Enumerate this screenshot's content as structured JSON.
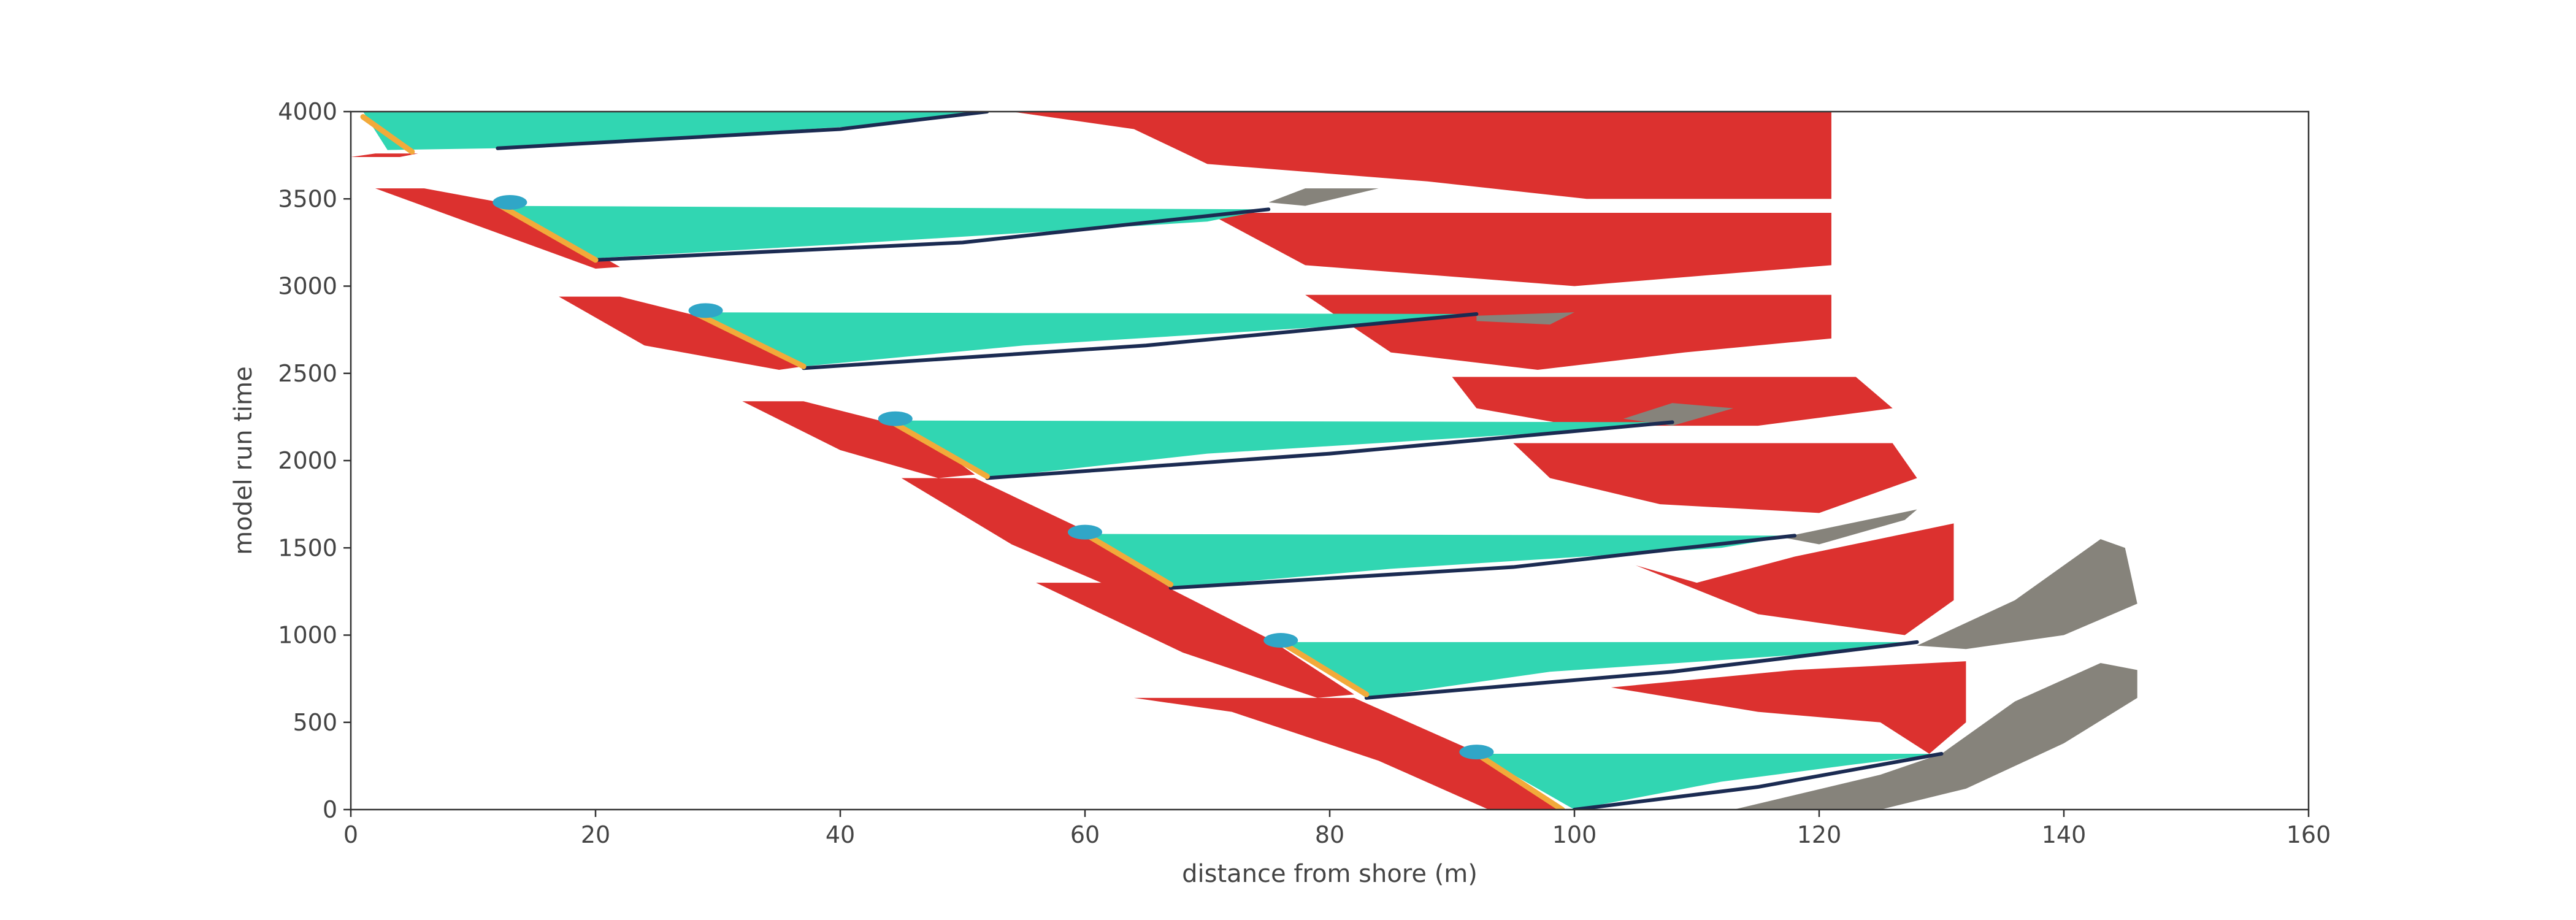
{
  "chart_data": {
    "type": "area",
    "title": "",
    "xlabel": "distance from shore (m)",
    "ylabel": "model run time",
    "xlim": [
      0,
      160
    ],
    "ylim": [
      0,
      4000
    ],
    "xticks": [
      0,
      20,
      40,
      60,
      80,
      100,
      120,
      140,
      160
    ],
    "yticks": [
      0,
      500,
      1000,
      1500,
      2000,
      2500,
      3000,
      3500,
      4000
    ],
    "grid": false,
    "legend": "none",
    "colors": {
      "red": "#dc312f",
      "teal": "#31d6b2",
      "gray": "#86837b",
      "navy": "#1b2b52",
      "orange": "#f2aa3a",
      "blue": "#30a6c7"
    },
    "regions": [
      {
        "color": "red",
        "points": [
          [
            0,
            3740
          ],
          [
            2,
            3760
          ],
          [
            5.5,
            3760
          ],
          [
            4,
            3740
          ]
        ]
      },
      {
        "color": "red",
        "points": [
          [
            2,
            3560
          ],
          [
            6,
            3560
          ],
          [
            13,
            3470
          ],
          [
            22,
            3110
          ],
          [
            20,
            3100
          ],
          [
            11,
            3330
          ]
        ]
      },
      {
        "color": "red",
        "points": [
          [
            17,
            2940
          ],
          [
            22,
            2940
          ],
          [
            30,
            2800
          ],
          [
            37,
            2540
          ],
          [
            35,
            2520
          ],
          [
            24,
            2660
          ]
        ]
      },
      {
        "color": "red",
        "points": [
          [
            32,
            2340
          ],
          [
            37,
            2340
          ],
          [
            46,
            2180
          ],
          [
            51,
            1920
          ],
          [
            48,
            1900
          ],
          [
            40,
            2060
          ]
        ]
      },
      {
        "color": "red",
        "points": [
          [
            45,
            1900
          ],
          [
            51,
            1900
          ],
          [
            60,
            1600
          ],
          [
            67,
            1270
          ],
          [
            63,
            1250
          ],
          [
            54,
            1520
          ]
        ]
      },
      {
        "color": "red",
        "points": [
          [
            56,
            1300
          ],
          [
            66,
            1300
          ],
          [
            75,
            980
          ],
          [
            82,
            660
          ],
          [
            79,
            640
          ],
          [
            68,
            900
          ]
        ]
      },
      {
        "color": "red",
        "points": [
          [
            64,
            640
          ],
          [
            82,
            640
          ],
          [
            91,
            360
          ],
          [
            99,
            0
          ],
          [
            93,
            0
          ],
          [
            84,
            280
          ],
          [
            72,
            560
          ]
        ]
      },
      {
        "color": "red",
        "points": [
          [
            54,
            4000
          ],
          [
            121,
            4000
          ],
          [
            121,
            3500
          ],
          [
            101,
            3500
          ],
          [
            88,
            3600
          ],
          [
            70,
            3700
          ],
          [
            64,
            3900
          ]
        ]
      },
      {
        "color": "red",
        "points": [
          [
            70,
            3420
          ],
          [
            121,
            3420
          ],
          [
            121,
            3120
          ],
          [
            100,
            3000
          ],
          [
            78,
            3120
          ]
        ]
      },
      {
        "color": "red",
        "points": [
          [
            78,
            2950
          ],
          [
            121,
            2950
          ],
          [
            121,
            2700
          ],
          [
            109,
            2620
          ],
          [
            97,
            2520
          ],
          [
            85,
            2620
          ]
        ]
      },
      {
        "color": "red",
        "points": [
          [
            90,
            2480
          ],
          [
            123,
            2480
          ],
          [
            126,
            2300
          ],
          [
            115,
            2200
          ],
          [
            100,
            2200
          ],
          [
            92,
            2300
          ]
        ]
      },
      {
        "color": "red",
        "points": [
          [
            95,
            2100
          ],
          [
            126,
            2100
          ],
          [
            128,
            1900
          ],
          [
            120,
            1700
          ],
          [
            107,
            1750
          ],
          [
            98,
            1900
          ]
        ]
      },
      {
        "color": "red",
        "points": [
          [
            105,
            1400
          ],
          [
            110,
            1300
          ],
          [
            118,
            1450
          ],
          [
            131,
            1640
          ],
          [
            131,
            1200
          ],
          [
            127,
            1000
          ],
          [
            115,
            1120
          ]
        ]
      },
      {
        "color": "red",
        "points": [
          [
            103,
            700
          ],
          [
            115,
            560
          ],
          [
            125,
            500
          ],
          [
            129,
            320
          ],
          [
            132,
            500
          ],
          [
            132,
            850
          ],
          [
            118,
            800
          ]
        ]
      },
      {
        "color": "teal",
        "points": [
          [
            1,
            4000
          ],
          [
            52,
            4000
          ],
          [
            42,
            3920
          ],
          [
            12,
            3790
          ],
          [
            3,
            3780
          ]
        ]
      },
      {
        "color": "teal",
        "points": [
          [
            12,
            3460
          ],
          [
            75,
            3440
          ],
          [
            70,
            3370
          ],
          [
            40,
            3240
          ],
          [
            20,
            3160
          ]
        ]
      },
      {
        "color": "teal",
        "points": [
          [
            28,
            2850
          ],
          [
            92,
            2840
          ],
          [
            85,
            2790
          ],
          [
            55,
            2660
          ],
          [
            37,
            2540
          ]
        ]
      },
      {
        "color": "teal",
        "points": [
          [
            44,
            2230
          ],
          [
            108,
            2220
          ],
          [
            100,
            2170
          ],
          [
            70,
            2040
          ],
          [
            52,
            1900
          ]
        ]
      },
      {
        "color": "teal",
        "points": [
          [
            60,
            1580
          ],
          [
            118,
            1570
          ],
          [
            112,
            1500
          ],
          [
            85,
            1380
          ],
          [
            67,
            1270
          ]
        ]
      },
      {
        "color": "teal",
        "points": [
          [
            76,
            960
          ],
          [
            128,
            960
          ],
          [
            121,
            900
          ],
          [
            98,
            790
          ],
          [
            83,
            640
          ]
        ]
      },
      {
        "color": "teal",
        "points": [
          [
            92,
            320
          ],
          [
            130,
            320
          ],
          [
            123,
            260
          ],
          [
            112,
            160
          ],
          [
            100,
            0
          ]
        ]
      },
      {
        "color": "gray",
        "points": [
          [
            75,
            3480
          ],
          [
            78,
            3560
          ],
          [
            84,
            3560
          ],
          [
            78,
            3460
          ]
        ]
      },
      {
        "color": "gray",
        "points": [
          [
            92,
            2830
          ],
          [
            100,
            2850
          ],
          [
            98,
            2780
          ],
          [
            92,
            2800
          ]
        ]
      },
      {
        "color": "gray",
        "points": [
          [
            104,
            2240
          ],
          [
            108,
            2330
          ],
          [
            113,
            2300
          ],
          [
            108,
            2200
          ]
        ]
      },
      {
        "color": "gray",
        "points": [
          [
            117,
            1560
          ],
          [
            128,
            1720
          ],
          [
            127,
            1660
          ],
          [
            120,
            1520
          ]
        ]
      },
      {
        "color": "gray",
        "points": [
          [
            128,
            940
          ],
          [
            136,
            1200
          ],
          [
            143,
            1550
          ],
          [
            145,
            1500
          ],
          [
            146,
            1180
          ],
          [
            140,
            1000
          ],
          [
            132,
            920
          ]
        ]
      },
      {
        "color": "gray",
        "points": [
          [
            113,
            0
          ],
          [
            125,
            200
          ],
          [
            130,
            320
          ],
          [
            136,
            620
          ],
          [
            143,
            840
          ],
          [
            146,
            800
          ],
          [
            146,
            640
          ],
          [
            140,
            380
          ],
          [
            132,
            120
          ],
          [
            125,
            0
          ]
        ]
      }
    ],
    "lines": [
      {
        "color": "navy",
        "points": [
          [
            12,
            3790
          ],
          [
            40,
            3900
          ],
          [
            52,
            4000
          ]
        ]
      },
      {
        "color": "navy",
        "points": [
          [
            20,
            3150
          ],
          [
            50,
            3250
          ],
          [
            75,
            3440
          ]
        ]
      },
      {
        "color": "navy",
        "points": [
          [
            37,
            2530
          ],
          [
            65,
            2660
          ],
          [
            92,
            2840
          ]
        ]
      },
      {
        "color": "navy",
        "points": [
          [
            52,
            1900
          ],
          [
            80,
            2040
          ],
          [
            108,
            2220
          ]
        ]
      },
      {
        "color": "navy",
        "points": [
          [
            67,
            1270
          ],
          [
            95,
            1390
          ],
          [
            118,
            1570
          ]
        ]
      },
      {
        "color": "navy",
        "points": [
          [
            83,
            640
          ],
          [
            108,
            790
          ],
          [
            128,
            960
          ]
        ]
      },
      {
        "color": "navy",
        "points": [
          [
            100,
            0
          ],
          [
            115,
            130
          ],
          [
            130,
            320
          ]
        ]
      },
      {
        "color": "orange",
        "points": [
          [
            1,
            3970
          ],
          [
            5,
            3770
          ]
        ]
      },
      {
        "color": "orange",
        "points": [
          [
            12,
            3470
          ],
          [
            20,
            3150
          ]
        ]
      },
      {
        "color": "orange",
        "points": [
          [
            28,
            2850
          ],
          [
            37,
            2540
          ]
        ]
      },
      {
        "color": "orange",
        "points": [
          [
            44,
            2230
          ],
          [
            52,
            1910
          ]
        ]
      },
      {
        "color": "orange",
        "points": [
          [
            60,
            1580
          ],
          [
            67,
            1290
          ]
        ]
      },
      {
        "color": "orange",
        "points": [
          [
            76,
            960
          ],
          [
            83,
            660
          ]
        ]
      },
      {
        "color": "orange",
        "points": [
          [
            92,
            320
          ],
          [
            99,
            0
          ]
        ]
      }
    ],
    "caps": [
      {
        "x": 13,
        "y": 3480
      },
      {
        "x": 29,
        "y": 2860
      },
      {
        "x": 44.5,
        "y": 2240
      },
      {
        "x": 60,
        "y": 1590
      },
      {
        "x": 76,
        "y": 970
      },
      {
        "x": 92,
        "y": 330
      }
    ]
  }
}
